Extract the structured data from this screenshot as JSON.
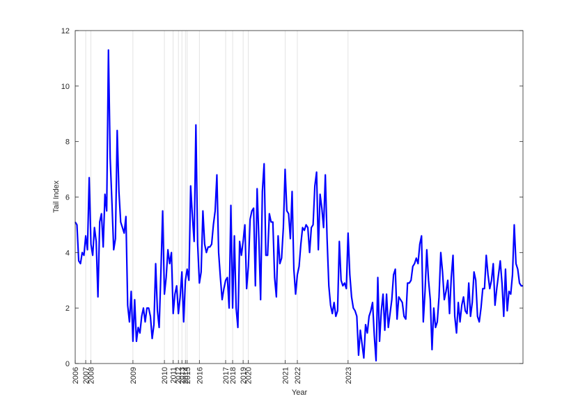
{
  "chart_data": {
    "type": "line",
    "title": "",
    "xlabel": "Year",
    "ylabel": "Tail Index",
    "ylim": [
      0,
      12
    ],
    "yticks": [
      0,
      2,
      4,
      6,
      8,
      10,
      12
    ],
    "x_tick_labels": [
      "2006",
      "2007",
      "2008",
      "2009",
      "2010",
      "2011",
      "2012",
      "2013",
      "2014",
      "2015",
      "2016",
      "2017",
      "2018",
      "2019",
      "2020",
      "2021",
      "2022",
      "2023"
    ],
    "x_tick_positions": [
      0,
      6,
      9,
      33,
      51,
      56,
      59,
      61,
      63,
      64,
      71,
      86,
      90,
      96,
      99,
      120,
      127,
      156
    ],
    "grid": "vertical lines at year ticks",
    "line_color": "#0000ff",
    "series": [
      {
        "values": [
          5.1,
          5.0,
          3.7,
          3.6,
          4.0,
          3.9,
          4.6,
          4.1,
          6.7,
          4.3,
          3.9,
          4.9,
          4.4,
          2.4,
          5.1,
          5.4,
          4.2,
          6.1,
          5.5,
          11.3,
          7.4,
          5.8,
          4.1,
          4.5,
          8.4,
          6.2,
          5.1,
          4.9,
          4.7,
          5.3,
          2.1,
          1.5,
          2.6,
          0.8,
          2.3,
          0.8,
          1.3,
          1.1,
          1.7,
          2.0,
          1.5,
          2.0,
          2.0,
          1.7,
          0.9,
          1.4,
          3.6,
          1.9,
          1.3,
          3.3,
          5.5,
          2.5,
          3.1,
          4.1,
          3.6,
          4.0,
          1.8,
          2.5,
          2.8,
          1.8,
          2.4,
          3.3,
          1.5,
          3.0,
          3.4,
          3.0,
          6.4,
          5.3,
          4.4,
          8.6,
          4.3,
          2.9,
          3.3,
          5.5,
          4.3,
          4.0,
          4.2,
          4.2,
          4.3,
          5.0,
          5.5,
          6.8,
          4.0,
          3.1,
          2.3,
          2.7,
          3.0,
          3.1,
          2.0,
          5.7,
          2.0,
          4.6,
          2.0,
          1.3,
          4.4,
          3.9,
          4.4,
          5.0,
          2.7,
          3.5,
          5.2,
          5.5,
          5.6,
          2.8,
          6.3,
          4.5,
          2.3,
          6.2,
          7.2,
          3.9,
          3.9,
          5.4,
          5.1,
          5.1,
          3.1,
          2.4,
          4.6,
          3.6,
          3.8,
          4.9,
          7.0,
          5.5,
          5.4,
          4.5,
          6.2,
          3.4,
          2.5,
          3.2,
          3.5,
          4.3,
          4.9,
          4.8,
          5.0,
          4.9,
          4.0,
          4.9,
          5.0,
          6.4,
          6.9,
          4.1,
          6.1,
          5.6,
          4.9,
          6.8,
          4.5,
          2.8,
          2.1,
          1.8,
          2.2,
          1.7,
          1.9,
          4.4,
          3.0,
          2.8,
          2.9,
          2.7,
          4.7,
          3.2,
          2.4,
          2.0,
          1.9,
          1.7,
          0.3,
          1.2,
          0.7,
          0.2,
          1.4,
          1.1,
          1.7,
          1.9,
          2.2,
          1.0,
          0.1,
          3.1,
          0.8,
          1.9,
          2.5,
          1.2,
          2.5,
          1.3,
          1.8,
          2.3,
          3.2,
          3.4,
          1.6,
          2.4,
          2.3,
          2.2,
          1.7,
          1.6,
          2.9,
          2.9,
          3.0,
          3.5,
          3.6,
          3.8,
          3.6,
          4.3,
          4.6,
          1.5,
          2.6,
          4.1,
          3.0,
          2.3,
          0.5,
          2.0,
          1.3,
          1.5,
          2.4,
          4.0,
          3.3,
          2.3,
          2.6,
          3.0,
          1.8,
          3.1,
          3.9,
          1.7,
          1.1,
          2.2,
          1.5,
          2.1,
          2.4,
          1.9,
          1.8,
          2.9,
          1.7,
          2.2,
          3.3,
          3.0,
          1.7,
          1.5,
          2.0,
          2.7,
          2.7,
          3.9,
          3.2,
          2.7,
          3.0,
          3.6,
          2.1,
          2.7,
          3.2,
          3.7,
          2.9,
          1.7,
          3.4,
          1.9,
          2.6,
          2.5,
          3.2,
          5.0,
          3.6,
          3.4,
          2.9,
          2.8,
          2.8
        ]
      }
    ]
  }
}
